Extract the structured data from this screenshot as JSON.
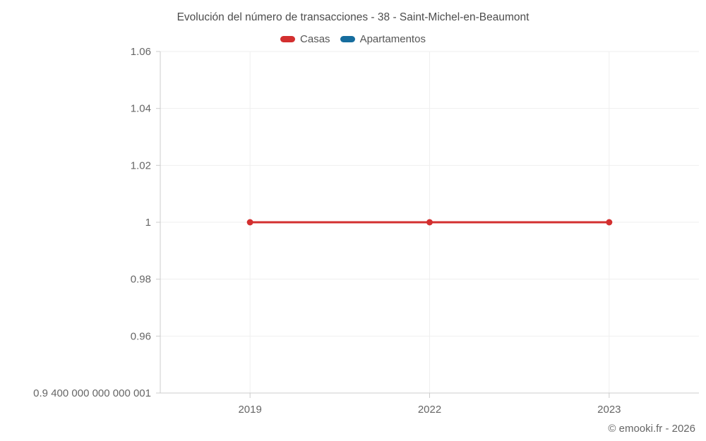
{
  "title": "Evolución del número de transacciones - 38 - Saint-Michel-en-Beaumont",
  "footer": "© emooki.fr - 2026",
  "legend": {
    "items": [
      {
        "label": "Casas",
        "color": "#d32f2f"
      },
      {
        "label": "Apartamentos",
        "color": "#166d9e"
      }
    ]
  },
  "chart_data": {
    "type": "line",
    "title": "Evolución del número de transacciones - 38 - Saint-Michel-en-Beaumont",
    "categories": [
      "2019",
      "2022",
      "2023"
    ],
    "series": [
      {
        "name": "Casas",
        "color": "#d32f2f",
        "values": [
          1,
          1,
          1
        ]
      },
      {
        "name": "Apartamentos",
        "color": "#166d9e",
        "values": []
      }
    ],
    "xlabel": "",
    "ylabel": "",
    "ylim": [
      0.94,
      1.06
    ],
    "y_ticks": [
      {
        "value": 1.06,
        "label": "1.06"
      },
      {
        "value": 1.04,
        "label": "1.04"
      },
      {
        "value": 1.02,
        "label": "1.02"
      },
      {
        "value": 1.0,
        "label": "1"
      },
      {
        "value": 0.98,
        "label": "0.98"
      },
      {
        "value": 0.96,
        "label": "0.96"
      },
      {
        "value": 0.94,
        "label": "0.9 400 000 000 000 001"
      }
    ],
    "grid": true,
    "legend_position": "top",
    "colors": {
      "grid": "#efefef",
      "axis": "#cccccc",
      "text": "#666666"
    }
  }
}
